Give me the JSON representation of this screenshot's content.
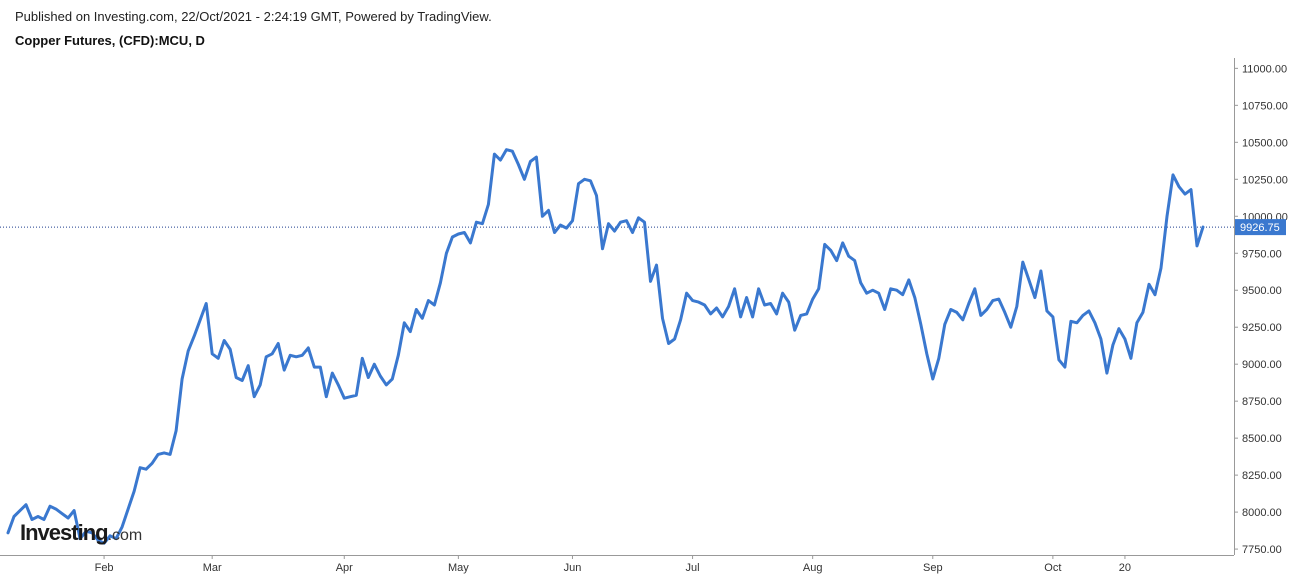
{
  "header": {
    "published": "Published on Investing.com, 22/Oct/2021 - 2:24:19 GMT, Powered by TradingView.",
    "title": "Copper Futures, (CFD):MCU, D"
  },
  "logo": {
    "name": "Investing",
    "suffix": ".com"
  },
  "colors": {
    "line": "#3a78cf",
    "last_price_label_bg": "#3a78cf",
    "last_price_line": "#1f3f8f",
    "axis": "#999999",
    "text": "#333333"
  },
  "chart_data": {
    "type": "line",
    "series": [
      {
        "values": [
          7860,
          7970,
          8010,
          8050,
          7950,
          7970,
          7950,
          8040,
          8020,
          7990,
          7960,
          8010,
          7820,
          7870,
          7860,
          7810,
          7790,
          7840,
          7820,
          7900,
          8020,
          8140,
          8300,
          8290,
          8330,
          8390,
          8400,
          8390,
          8550,
          8900,
          9090,
          9190,
          9300,
          9410,
          9070,
          9040,
          9160,
          9100,
          8910,
          8890,
          8990,
          8780,
          8860,
          9050,
          9070,
          9140,
          8960,
          9060,
          9050,
          9060,
          9110,
          8980,
          8980,
          8780,
          8940,
          8860,
          8770,
          8780,
          8790,
          9040,
          8910,
          9000,
          8920,
          8860,
          8900,
          9060,
          9280,
          9220,
          9370,
          9310,
          9430,
          9400,
          9550,
          9750,
          9860,
          9880,
          9890,
          9820,
          9960,
          9950,
          10080,
          10420,
          10380,
          10450,
          10440,
          10350,
          10250,
          10370,
          10400,
          10000,
          10040,
          9890,
          9940,
          9920,
          9970,
          10220,
          10250,
          10240,
          10140,
          9780,
          9950,
          9900,
          9960,
          9970,
          9890,
          9990,
          9960,
          9560,
          9670,
          9310,
          9140,
          9170,
          9300,
          9480,
          9430,
          9420,
          9400,
          9340,
          9380,
          9320,
          9390,
          9510,
          9320,
          9450,
          9320,
          9510,
          9400,
          9410,
          9340,
          9480,
          9420,
          9230,
          9330,
          9340,
          9440,
          9510,
          9810,
          9770,
          9700,
          9820,
          9730,
          9700,
          9550,
          9480,
          9500,
          9480,
          9370,
          9510,
          9500,
          9470,
          9570,
          9450,
          9270,
          9070,
          8900,
          9040,
          9270,
          9370,
          9350,
          9300,
          9410,
          9510,
          9330,
          9370,
          9430,
          9440,
          9350,
          9250,
          9390,
          9690,
          9570,
          9450,
          9630,
          9360,
          9320,
          9030,
          8980,
          9290,
          9280,
          9330,
          9360,
          9280,
          9170,
          8940,
          9130,
          9240,
          9170,
          9040,
          9280,
          9350,
          9540,
          9470,
          9650,
          10000,
          10280,
          10200,
          10150,
          10180,
          9800,
          9926.75
        ]
      }
    ],
    "x_tick_labels": [
      "Feb",
      "Mar",
      "Apr",
      "May",
      "Jun",
      "Jul",
      "Aug",
      "Sep",
      "Oct",
      "20"
    ],
    "x_tick_index": [
      16,
      34,
      56,
      75,
      94,
      114,
      134,
      154,
      174,
      186
    ],
    "y_ticks": [
      7750,
      8000,
      8250,
      8500,
      8750,
      9000,
      9250,
      9500,
      9750,
      10000,
      10250,
      10500,
      10750,
      11000
    ],
    "y_tick_labels": [
      "7750.00",
      "8000.00",
      "8250.00",
      "8500.00",
      "8750.00",
      "9000.00",
      "9250.00",
      "9500.00",
      "9750.00",
      "10000.00",
      "10250.00",
      "10500.00",
      "10750.00",
      "11000.00"
    ],
    "ylim": [
      7710,
      11070
    ],
    "last_price": 9926.75,
    "last_price_label": "9926.75",
    "grid": false
  }
}
